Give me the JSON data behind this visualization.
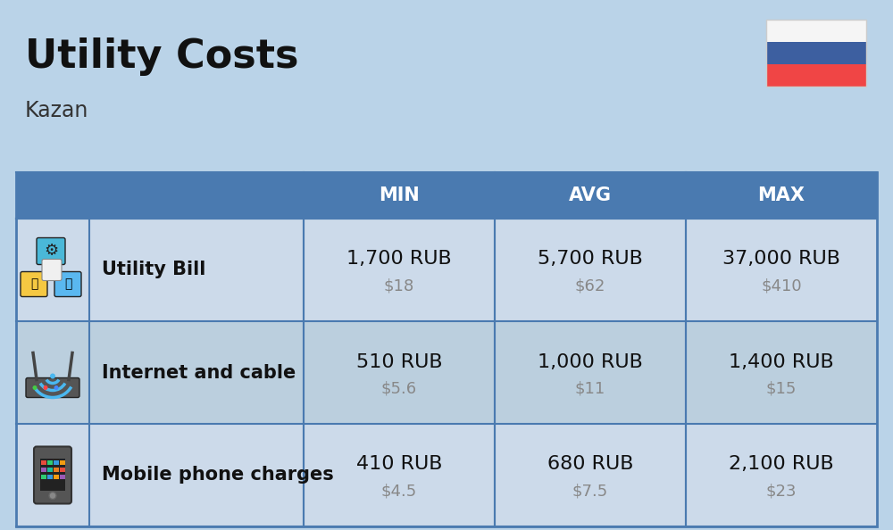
{
  "title": "Utility Costs",
  "subtitle": "Kazan",
  "background_color": "#bad3e8",
  "header_bg_color": "#4a7ab0",
  "header_text_color": "#ffffff",
  "row_bg_color_1": "#ccdaea",
  "row_bg_color_2": "#bbcfde",
  "col_separator_color": "#4a7ab0",
  "header_labels": [
    "MIN",
    "AVG",
    "MAX"
  ],
  "rows": [
    {
      "label": "Utility Bill",
      "min_rub": "1,700 RUB",
      "min_usd": "$18",
      "avg_rub": "5,700 RUB",
      "avg_usd": "$62",
      "max_rub": "37,000 RUB",
      "max_usd": "$410"
    },
    {
      "label": "Internet and cable",
      "min_rub": "510 RUB",
      "min_usd": "$5.6",
      "avg_rub": "1,000 RUB",
      "avg_usd": "$11",
      "max_rub": "1,400 RUB",
      "max_usd": "$15"
    },
    {
      "label": "Mobile phone charges",
      "min_rub": "410 RUB",
      "min_usd": "$4.5",
      "avg_rub": "680 RUB",
      "avg_usd": "$7.5",
      "max_rub": "2,100 RUB",
      "max_usd": "$23"
    }
  ],
  "flag_colors": [
    "#f5f5f5",
    "#3d5fa0",
    "#f04545"
  ],
  "title_fontsize": 32,
  "subtitle_fontsize": 17,
  "header_fontsize": 15,
  "row_label_fontsize": 15,
  "cell_rub_fontsize": 16,
  "cell_usd_fontsize": 13,
  "usd_color": "#888888"
}
